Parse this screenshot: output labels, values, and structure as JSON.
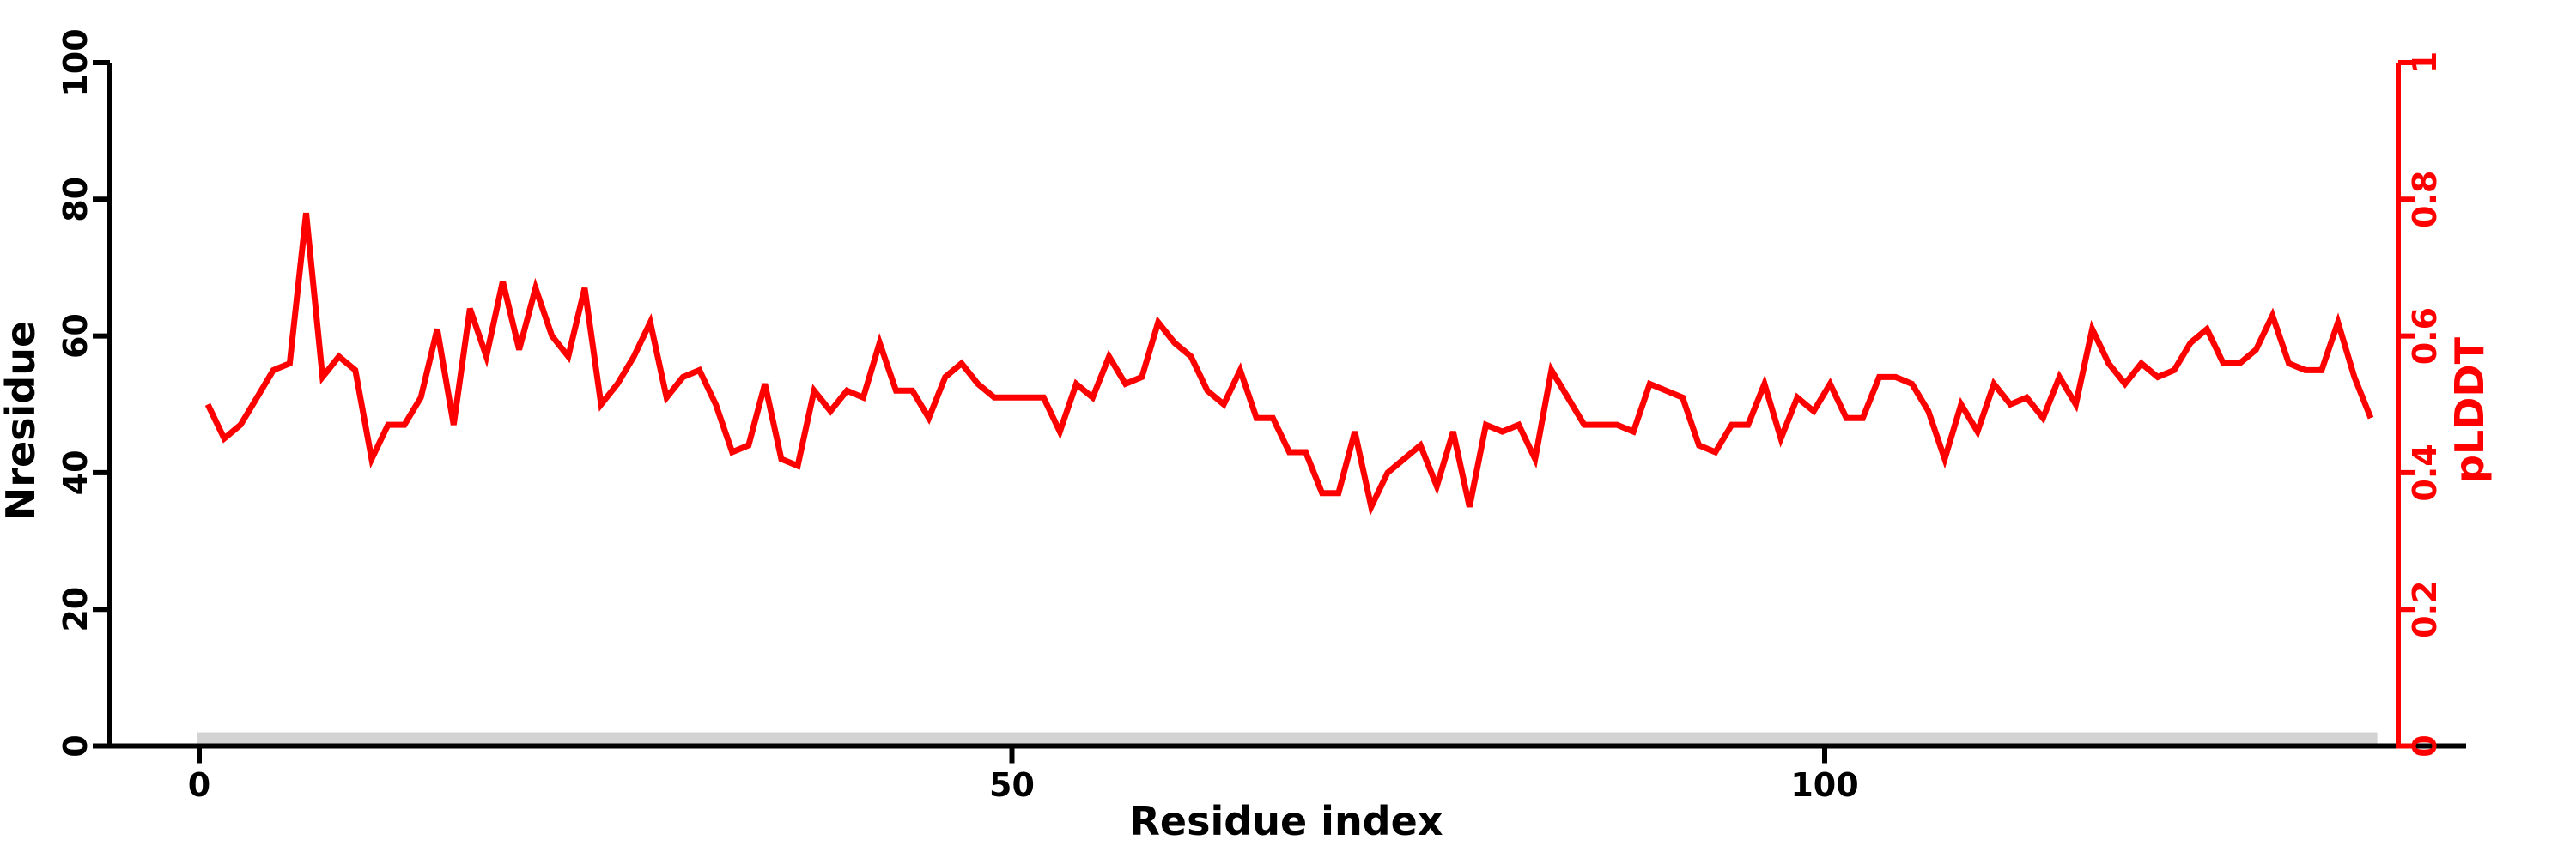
{
  "chart_data": {
    "type": "line",
    "title": "",
    "xlabel": "Residue index",
    "ylabel_left": "Nresidue",
    "ylabel_right": "pLDDT",
    "x_ticks": [
      "0",
      "50",
      "100"
    ],
    "x_tick_values": [
      0,
      50,
      100
    ],
    "y_left_ticks": [
      "0",
      "20",
      "40",
      "60",
      "80",
      "100"
    ],
    "y_left_tick_values": [
      0,
      20,
      40,
      60,
      80,
      100
    ],
    "y_right_ticks": [
      "0",
      "0.2",
      "0.4",
      "0.6",
      "0.8",
      "1"
    ],
    "y_right_tick_values": [
      0,
      0.2,
      0.4,
      0.6,
      0.8,
      1
    ],
    "xlim": [
      -5.5,
      139.5
    ],
    "ylim_left": [
      0,
      100
    ],
    "ylim_right": [
      0,
      1
    ],
    "grid": false,
    "legend_position": "none",
    "background": "#ffffff",
    "axis_color_left": "#000000",
    "axis_color_bottom": "#000000",
    "axis_color_right": "#ff0000",
    "series": [
      {
        "name": "pLDDT",
        "type": "line",
        "axis": "right",
        "color": "#ff0000",
        "x_start_residue": 1,
        "x_step": 1,
        "values": [
          0.5,
          0.45,
          0.47,
          0.51,
          0.55,
          0.56,
          0.78,
          0.54,
          0.57,
          0.55,
          0.42,
          0.47,
          0.47,
          0.51,
          0.61,
          0.47,
          0.64,
          0.57,
          0.68,
          0.58,
          0.67,
          0.6,
          0.57,
          0.67,
          0.5,
          0.53,
          0.57,
          0.62,
          0.51,
          0.54,
          0.55,
          0.5,
          0.43,
          0.44,
          0.53,
          0.42,
          0.41,
          0.52,
          0.49,
          0.52,
          0.51,
          0.59,
          0.52,
          0.52,
          0.48,
          0.54,
          0.56,
          0.53,
          0.51,
          0.51,
          0.51,
          0.51,
          0.46,
          0.53,
          0.51,
          0.57,
          0.53,
          0.54,
          0.62,
          0.59,
          0.57,
          0.52,
          0.5,
          0.55,
          0.48,
          0.48,
          0.43,
          0.43,
          0.37,
          0.37,
          0.46,
          0.35,
          0.4,
          0.42,
          0.44,
          0.38,
          0.46,
          0.35,
          0.47,
          0.46,
          0.47,
          0.42,
          0.55,
          0.51,
          0.47,
          0.47,
          0.47,
          0.46,
          0.53,
          0.52,
          0.51,
          0.44,
          0.43,
          0.47,
          0.47,
          0.53,
          0.45,
          0.51,
          0.49,
          0.53,
          0.48,
          0.48,
          0.54,
          0.54,
          0.53,
          0.49,
          0.42,
          0.5,
          0.46,
          0.53,
          0.5,
          0.51,
          0.48,
          0.54,
          0.5,
          0.61,
          0.56,
          0.53,
          0.56,
          0.54,
          0.55,
          0.59,
          0.61,
          0.56,
          0.56,
          0.58,
          0.63,
          0.56,
          0.55,
          0.55,
          0.62,
          0.54,
          0.48
        ]
      },
      {
        "name": "Nresidue",
        "type": "band",
        "axis": "left",
        "color": "#d3d3d3",
        "x_start": 0,
        "x_end": 134,
        "value": 2
      }
    ]
  }
}
